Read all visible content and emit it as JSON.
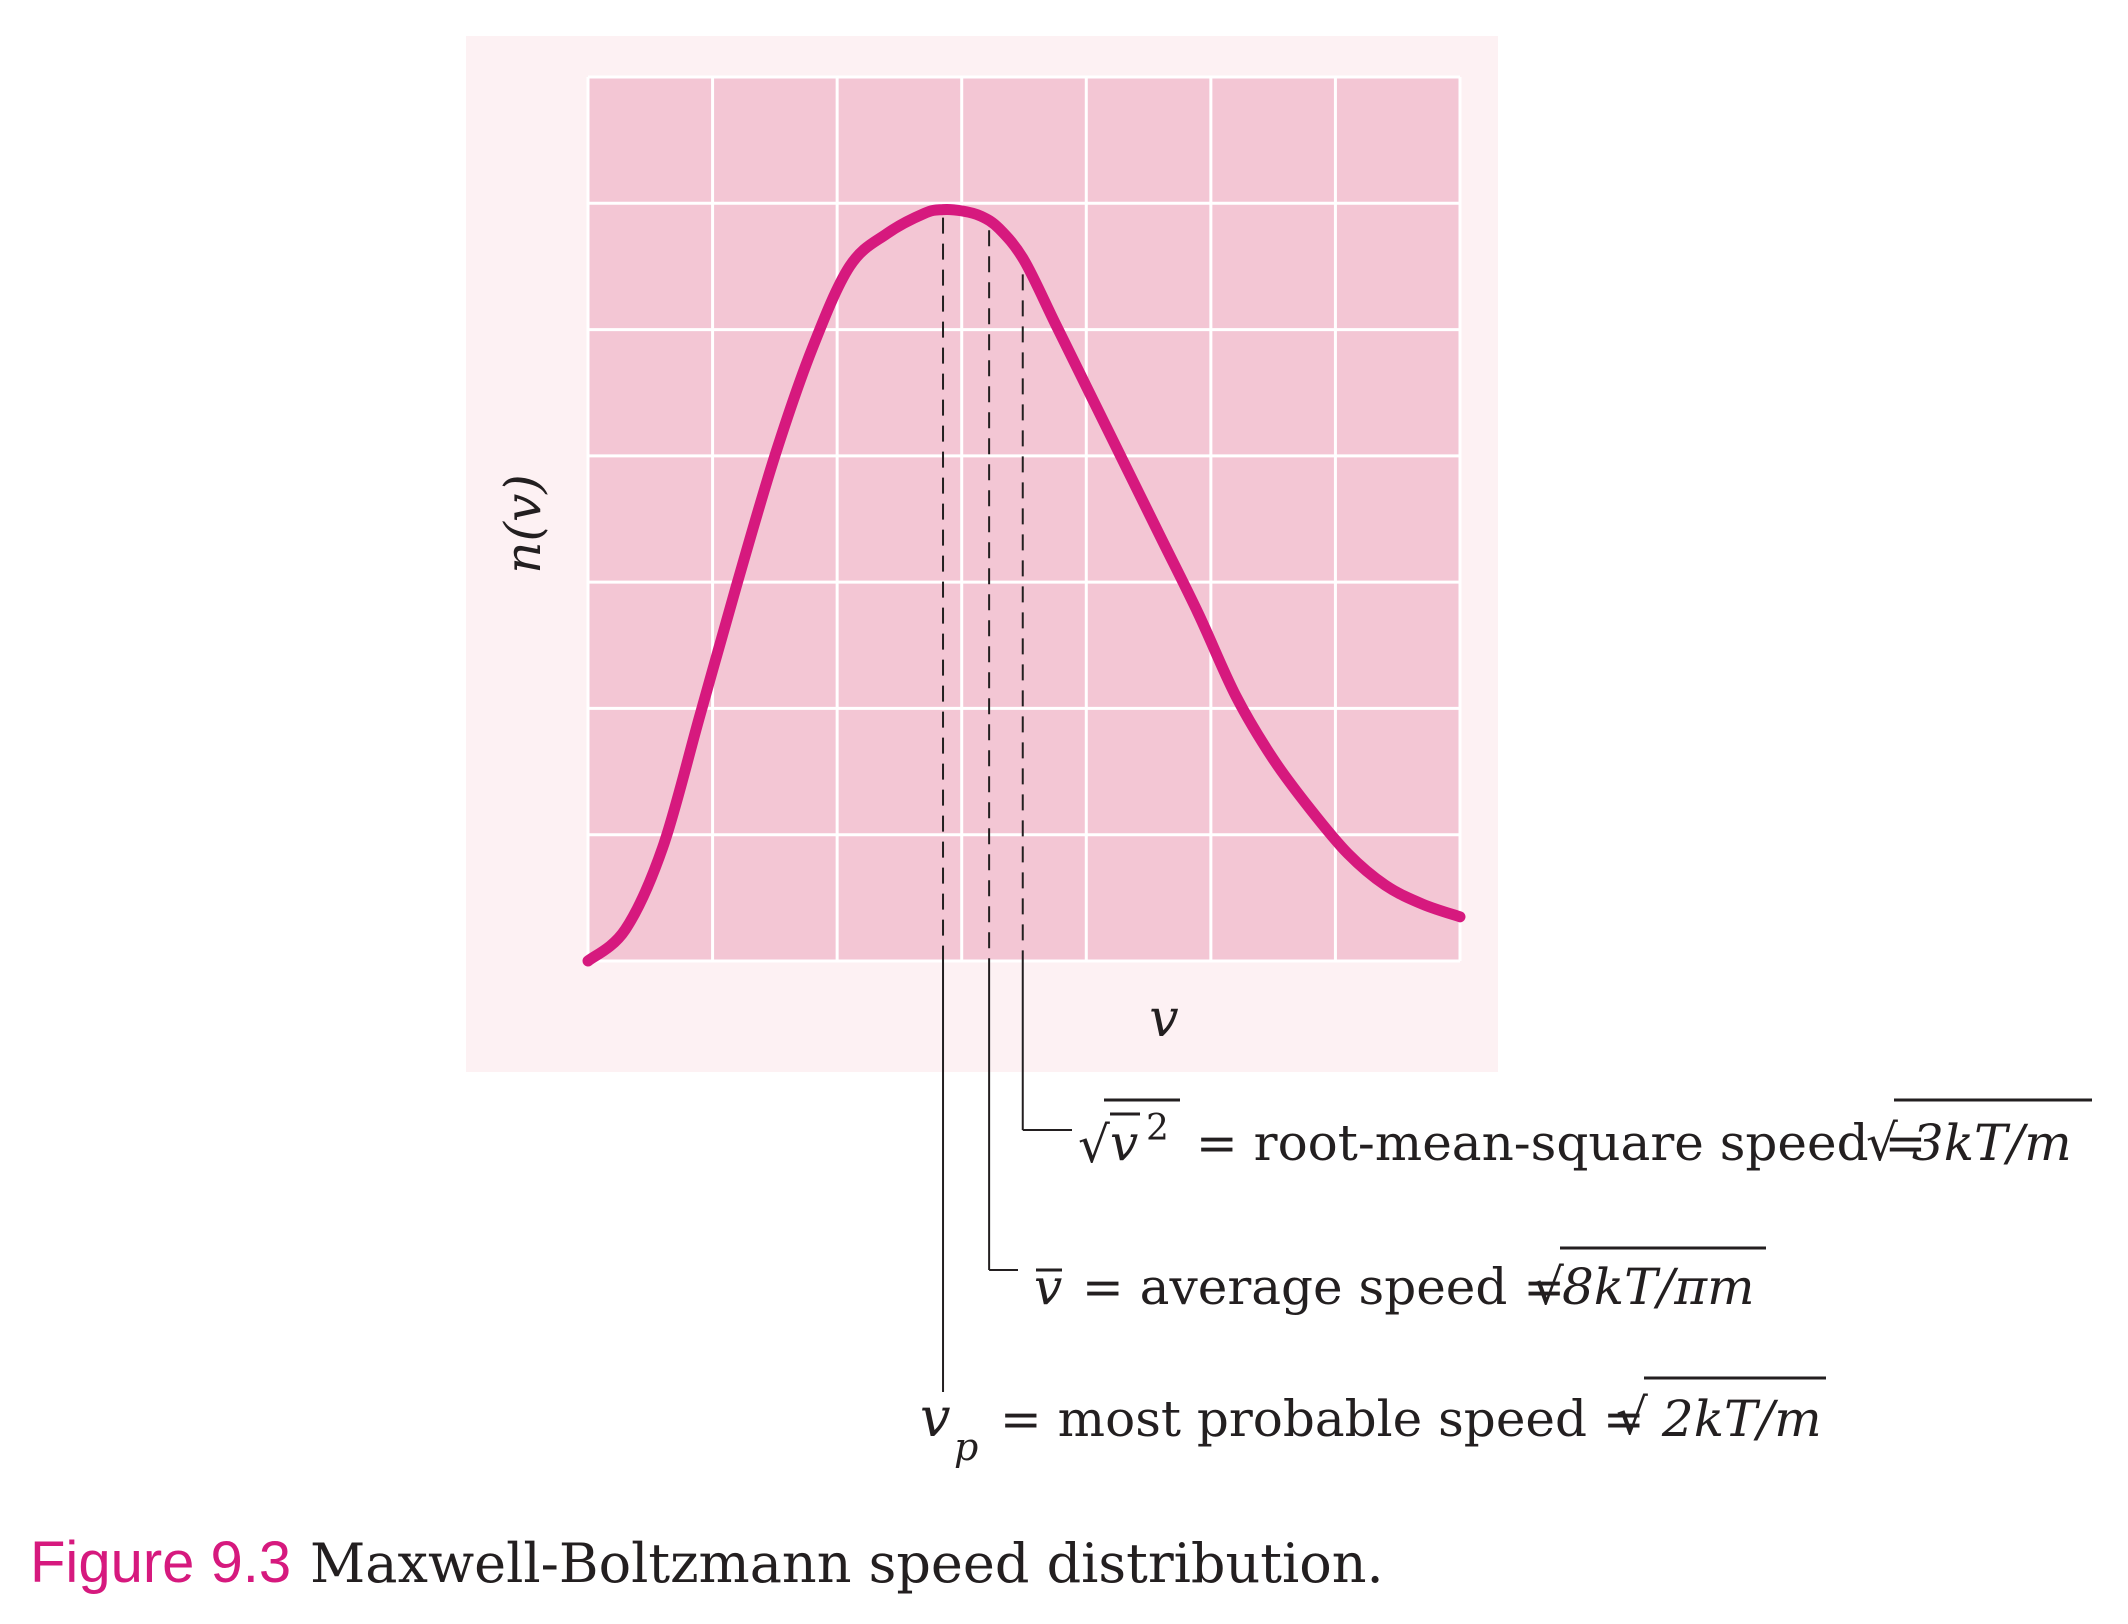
{
  "colors": {
    "outer_panel": "#fdf1f3",
    "plot_bg": "#f3c6d4",
    "grid": "#ffffff",
    "curve": "#d6197e",
    "leader_line": "#231f20",
    "caption_accent": "#d6197e",
    "text": "#231f20"
  },
  "chart_data": {
    "type": "line",
    "title": "",
    "xlabel": "v",
    "ylabel": "n(v)",
    "xlim": [
      0,
      7
    ],
    "ylim": [
      0,
      7
    ],
    "grid": true,
    "legend": "none",
    "series": [
      {
        "x": [
          0.0,
          0.3,
          0.6,
          0.9,
          1.2,
          1.5,
          1.8,
          2.1,
          2.4,
          2.7,
          2.85,
          3.0,
          3.15,
          3.3,
          3.5,
          3.75,
          4.0,
          4.3,
          4.6,
          4.9,
          5.2,
          5.5,
          5.8,
          6.1,
          6.4,
          6.7,
          7.0
        ],
        "y": [
          0.0,
          0.25,
          0.9,
          1.95,
          3.0,
          4.0,
          4.85,
          5.5,
          5.76,
          5.92,
          5.95,
          5.94,
          5.9,
          5.8,
          5.55,
          5.05,
          4.55,
          3.95,
          3.35,
          2.75,
          2.1,
          1.6,
          1.2,
          0.85,
          0.6,
          0.45,
          0.35
        ]
      }
    ],
    "markers": [
      {
        "name": "vp",
        "x": 2.85,
        "y": 5.95
      },
      {
        "name": "vavg",
        "x": 3.22,
        "y": 5.85
      },
      {
        "name": "vrms",
        "x": 3.49,
        "y": 5.5
      }
    ]
  },
  "annotations": {
    "rms": {
      "symbol_v": "v",
      "symbol_exp": "2",
      "text": " = root-mean-square speed =",
      "formula": " 3kT/m"
    },
    "avg": {
      "symbol_v": "v",
      "text": " = average speed =",
      "formula": "8kT/πm"
    },
    "vp": {
      "symbol_v": "v",
      "subscript": "p",
      "text": " = most probable speed =",
      "formula": " 2kT/m"
    }
  },
  "caption": {
    "number": "Figure 9.3",
    "text": "Maxwell-Boltzmann speed distribution."
  }
}
